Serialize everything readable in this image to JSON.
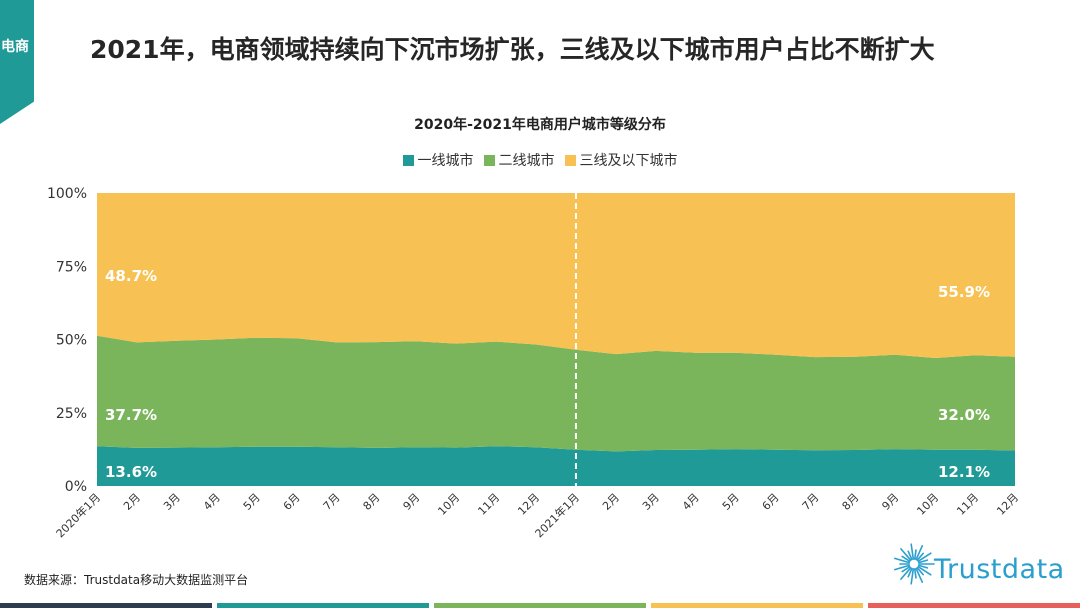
{
  "section_tag": "电商",
  "page_title": "2021年，电商领域持续向下沉市场扩张，三线及以下城市用户占比不断扩大",
  "source": "数据来源：Trustdata移动大数据监测平台",
  "logo_text": "Trustdata",
  "colors": {
    "tier1": "#1f9a96",
    "tier2": "#7ab55c",
    "tier3": "#f7c154",
    "accent": "#1f9a96",
    "footer": [
      "#2b3d4f",
      "#1f9a96",
      "#7ab55c",
      "#f7c154",
      "#e8605a"
    ]
  },
  "chart_data": {
    "type": "area",
    "stacked": true,
    "title": "2020年-2021年电商用户城市等级分布",
    "categories": [
      "2020年1月",
      "2月",
      "3月",
      "4月",
      "5月",
      "6月",
      "7月",
      "8月",
      "9月",
      "10月",
      "11月",
      "12月",
      "2021年1月",
      "2月",
      "3月",
      "4月",
      "5月",
      "6月",
      "7月",
      "8月",
      "9月",
      "10月",
      "11月",
      "12月"
    ],
    "series": [
      {
        "name": "一线城市",
        "values": [
          13.6,
          13.0,
          13.1,
          13.2,
          13.4,
          13.4,
          13.2,
          13.0,
          13.2,
          13.1,
          13.6,
          13.2,
          12.4,
          11.8,
          12.3,
          12.4,
          12.6,
          12.4,
          12.2,
          12.3,
          12.6,
          12.4,
          12.4,
          12.1
        ]
      },
      {
        "name": "二线城市",
        "values": [
          37.7,
          36.0,
          36.5,
          36.8,
          37.2,
          37.0,
          35.8,
          36.1,
          36.2,
          35.5,
          35.7,
          35.1,
          34.1,
          33.2,
          33.8,
          33.1,
          32.9,
          32.4,
          31.8,
          31.8,
          32.2,
          31.3,
          32.2,
          32.0
        ]
      },
      {
        "name": "三线及以下城市",
        "values": [
          48.7,
          51.0,
          50.4,
          50.0,
          49.4,
          49.6,
          51.0,
          50.9,
          50.6,
          51.4,
          50.7,
          51.7,
          53.5,
          55.0,
          53.9,
          54.5,
          54.5,
          55.2,
          56.0,
          55.9,
          55.2,
          56.3,
          55.4,
          55.9
        ]
      }
    ],
    "ylim": [
      0,
      100
    ],
    "yticks": [
      "0%",
      "25%",
      "50%",
      "75%",
      "100%"
    ],
    "divider_at": "2021年1月",
    "data_labels": {
      "first": [
        "13.6%",
        "37.7%",
        "48.7%"
      ],
      "last": [
        "12.1%",
        "32.0%",
        "55.9%"
      ]
    }
  }
}
